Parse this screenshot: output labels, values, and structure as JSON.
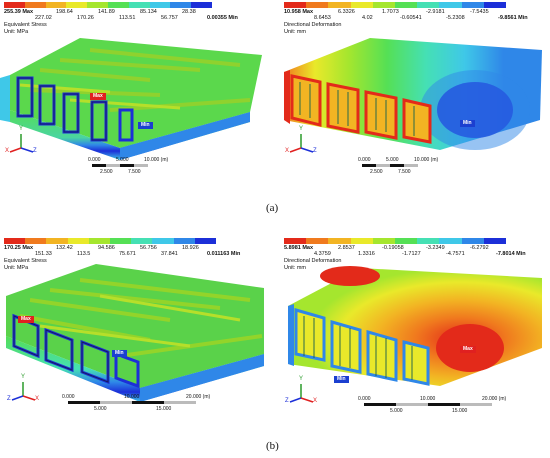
{
  "colors": {
    "band": [
      "#1c2fd8",
      "#2f87e8",
      "#3fc8e8",
      "#45e0b4",
      "#55e055",
      "#a5e62e",
      "#e9e92a",
      "#f2b423",
      "#f07a1e",
      "#e32a1a"
    ]
  },
  "a": {
    "caption": "(a)",
    "left": {
      "max_value": "255.39 Max",
      "top_row": [
        "198.64",
        "141.89",
        "85.134",
        "28.38"
      ],
      "bottom_row": [
        "227.02",
        "170.26",
        "113.51",
        "56.757"
      ],
      "min_value": "0.00355 Min",
      "title": "Equivalent Stress",
      "unit": "Unit: MPa",
      "max_tag": "Max",
      "min_tag": "Min",
      "scale": {
        "t0": "0.000",
        "t1": "5.000",
        "t2": "10.000 (m)",
        "m1": "2.500",
        "m2": "7.500"
      }
    },
    "right": {
      "max_value": "10.958 Max",
      "top_row": [
        "6.3326",
        "1.7073",
        "-2.9181",
        "-7.5435"
      ],
      "bottom_row": [
        "8.6453",
        "4.02",
        "-0.60541",
        "-5.2308"
      ],
      "min_value": "-9.8561 Min",
      "title": "Directional Deformation",
      "unit": "Unit: mm",
      "min_tag": "Min",
      "scale": {
        "t0": "0.000",
        "t1": "5.000",
        "t2": "10.000 (m)",
        "m1": "2.500",
        "m2": "7.500"
      }
    }
  },
  "b": {
    "caption": "(b)",
    "left": {
      "max_value": "170.25 Max",
      "top_row": [
        "132.42",
        "94.586",
        "56.756",
        "18.926"
      ],
      "bottom_row": [
        "151.33",
        "113.5",
        "75.671",
        "37.841"
      ],
      "min_value": "0.011163 Min",
      "title": "Equivalent Stress",
      "unit": "Unit: MPa",
      "max_tag": "Max",
      "min_tag": "Min",
      "scale": {
        "t0": "0.000",
        "t1": "10.000",
        "t2": "20.000 (m)",
        "m1": "5.000",
        "m2": "15.000"
      }
    },
    "right": {
      "max_value": "5.8981 Max",
      "top_row": [
        "2.8537",
        "-0.19058",
        "-3.2349",
        "-6.2792"
      ],
      "bottom_row": [
        "4.3759",
        "1.3316",
        "-1.7127",
        "-4.7571"
      ],
      "min_value": "-7.8014 Min",
      "title": "Directional Deformation",
      "unit": "Unit: mm",
      "max_tag": "Max",
      "min_tag": "Min",
      "scale": {
        "t0": "0.000",
        "t1": "10.000",
        "t2": "20.000 (m)",
        "m1": "5.000",
        "m2": "15.000"
      }
    }
  },
  "axes": {
    "x": "X",
    "y": "Y",
    "z": "Z"
  }
}
